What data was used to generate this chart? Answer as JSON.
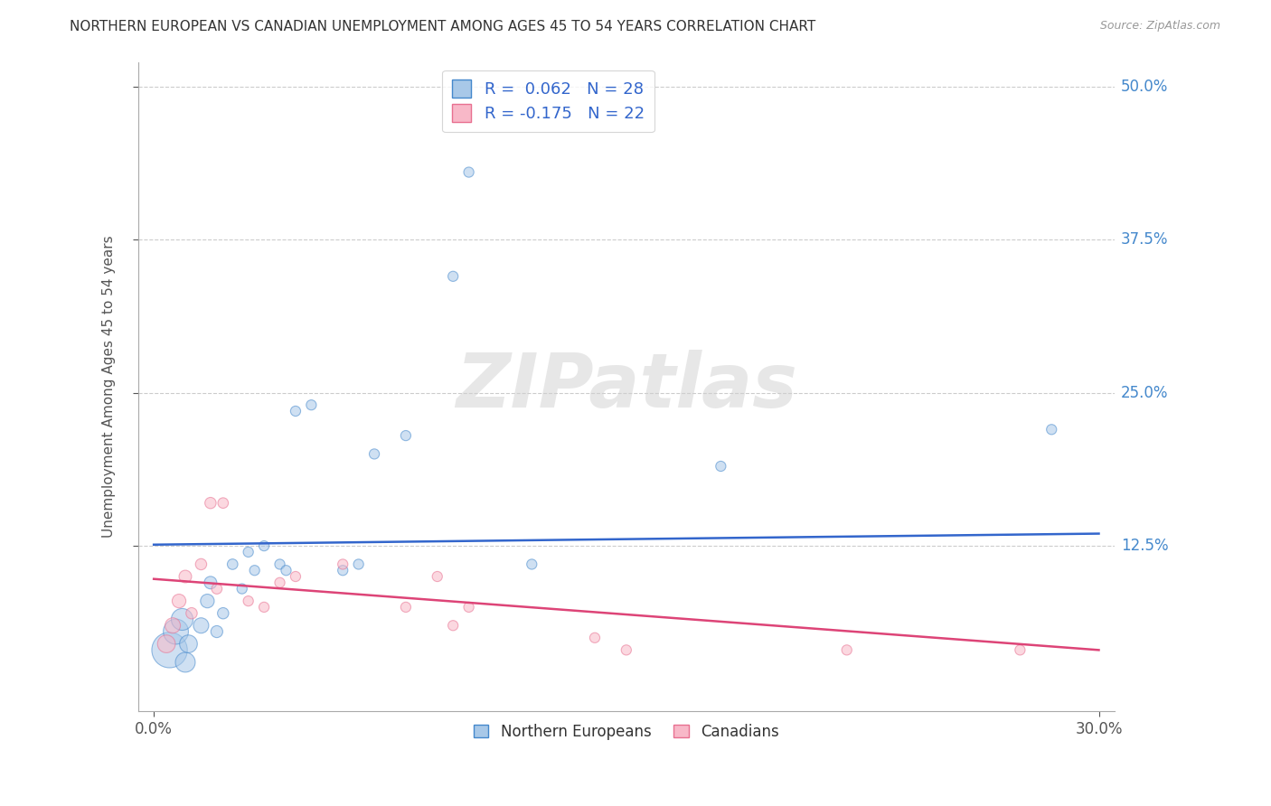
{
  "title": "NORTHERN EUROPEAN VS CANADIAN UNEMPLOYMENT AMONG AGES 45 TO 54 YEARS CORRELATION CHART",
  "source": "Source: ZipAtlas.com",
  "ylabel": "Unemployment Among Ages 45 to 54 years",
  "xlim": [
    -0.005,
    0.305
  ],
  "ylim": [
    -0.01,
    0.52
  ],
  "xticks": [
    0.0,
    0.3
  ],
  "xtick_labels": [
    "0.0%",
    "30.0%"
  ],
  "yticks": [
    0.125,
    0.25,
    0.375,
    0.5
  ],
  "ytick_labels": [
    "12.5%",
    "25.0%",
    "37.5%",
    "50.0%"
  ],
  "grid_color": "#cccccc",
  "watermark_text": "ZIPatlas",
  "blue_fill": "#a8c8e8",
  "pink_fill": "#f8b8c8",
  "blue_edge": "#4488cc",
  "pink_edge": "#e87090",
  "blue_line_color": "#3366cc",
  "pink_line_color": "#dd4477",
  "legend_label1": "R =  0.062   N = 28",
  "legend_label2": "R = -0.175   N = 22",
  "legend_label_ne": "Northern Europeans",
  "legend_label_ca": "Canadians",
  "blue_scatter_x": [
    0.005,
    0.007,
    0.009,
    0.01,
    0.011,
    0.015,
    0.017,
    0.018,
    0.02,
    0.022,
    0.025,
    0.028,
    0.03,
    0.032,
    0.035,
    0.04,
    0.042,
    0.045,
    0.05,
    0.06,
    0.065,
    0.07,
    0.08,
    0.095,
    0.1,
    0.12,
    0.18,
    0.285
  ],
  "blue_scatter_y": [
    0.04,
    0.055,
    0.065,
    0.03,
    0.045,
    0.06,
    0.08,
    0.095,
    0.055,
    0.07,
    0.11,
    0.09,
    0.12,
    0.105,
    0.125,
    0.11,
    0.105,
    0.235,
    0.24,
    0.105,
    0.11,
    0.2,
    0.215,
    0.345,
    0.43,
    0.11,
    0.19,
    0.22
  ],
  "blue_scatter_size": [
    800,
    400,
    300,
    250,
    200,
    150,
    120,
    100,
    90,
    80,
    70,
    65,
    65,
    65,
    65,
    65,
    65,
    65,
    65,
    65,
    65,
    65,
    65,
    65,
    65,
    65,
    65,
    65
  ],
  "pink_scatter_x": [
    0.004,
    0.006,
    0.008,
    0.01,
    0.012,
    0.015,
    0.018,
    0.02,
    0.022,
    0.03,
    0.035,
    0.04,
    0.045,
    0.06,
    0.08,
    0.09,
    0.095,
    0.1,
    0.14,
    0.15,
    0.22,
    0.275
  ],
  "pink_scatter_y": [
    0.045,
    0.06,
    0.08,
    0.1,
    0.07,
    0.11,
    0.16,
    0.09,
    0.16,
    0.08,
    0.075,
    0.095,
    0.1,
    0.11,
    0.075,
    0.1,
    0.06,
    0.075,
    0.05,
    0.04,
    0.04,
    0.04
  ],
  "pink_scatter_size": [
    200,
    150,
    120,
    100,
    80,
    80,
    80,
    70,
    70,
    65,
    65,
    65,
    65,
    65,
    65,
    65,
    65,
    65,
    65,
    65,
    65,
    65
  ],
  "blue_line_x0": 0.0,
  "blue_line_y0": 0.126,
  "blue_line_x1": 0.3,
  "blue_line_y1": 0.135,
  "pink_line_x0": 0.0,
  "pink_line_y0": 0.098,
  "pink_line_x1": 0.3,
  "pink_line_y1": 0.04
}
